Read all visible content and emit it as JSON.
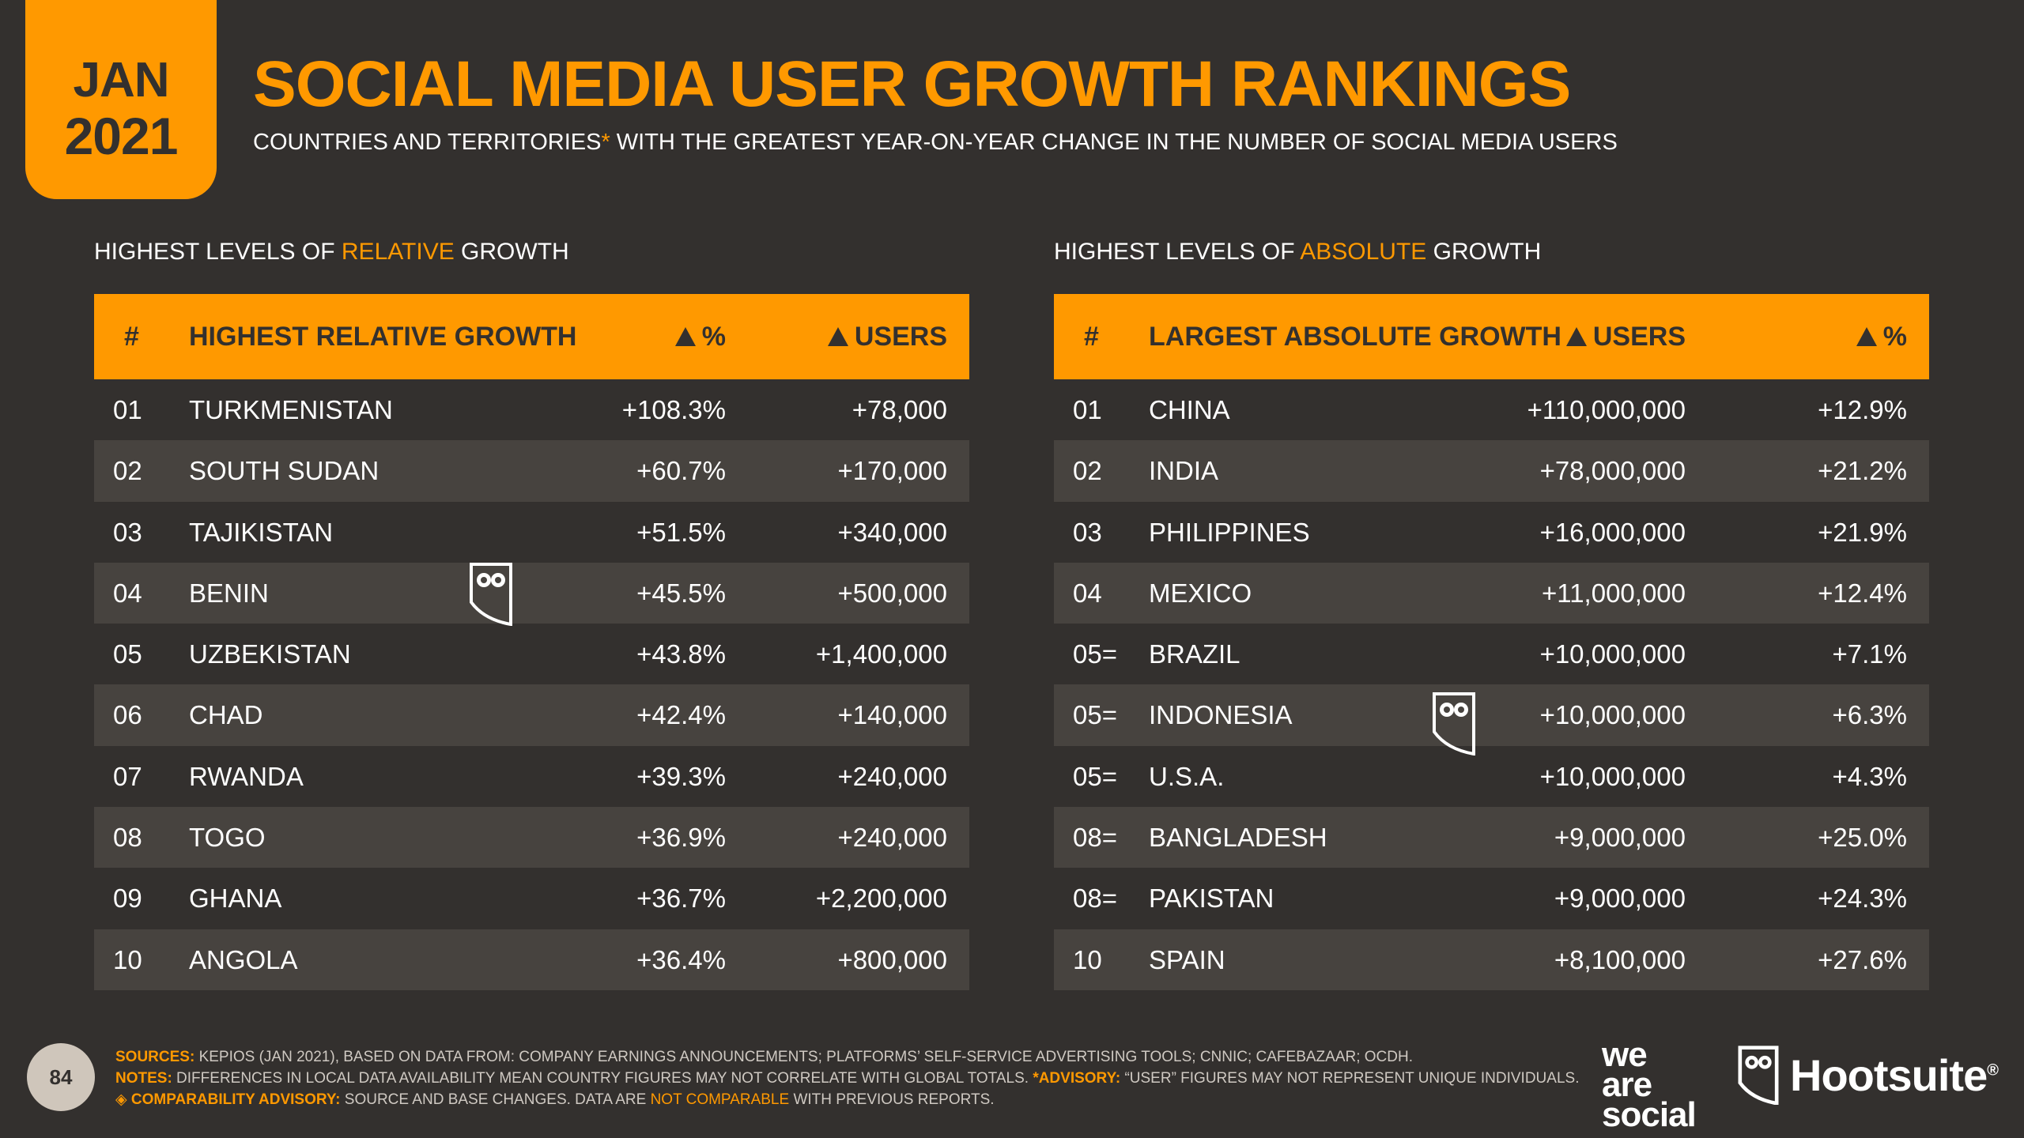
{
  "badge": {
    "month": "JAN",
    "year": "2021"
  },
  "title": "SOCIAL MEDIA USER GROWTH RANKINGS",
  "subtitle": {
    "before": "COUNTRIES AND TERRITORIES",
    "asterisk": "*",
    "after": " WITH THE GREATEST YEAR-ON-YEAR CHANGE IN THE NUMBER OF SOCIAL MEDIA USERS"
  },
  "relative": {
    "label_pre": "HIGHEST LEVELS OF ",
    "label_hl": "RELATIVE",
    "label_post": " GROWTH",
    "headers": {
      "rank": "#",
      "name": "HIGHEST RELATIVE GROWTH",
      "v1": "%",
      "v2": "USERS"
    },
    "rows": [
      {
        "rank": "01",
        "name": "TURKMENISTAN",
        "pct": "+108.3%",
        "users": "+78,000"
      },
      {
        "rank": "02",
        "name": "SOUTH SUDAN",
        "pct": "+60.7%",
        "users": "+170,000"
      },
      {
        "rank": "03",
        "name": "TAJIKISTAN",
        "pct": "+51.5%",
        "users": "+340,000"
      },
      {
        "rank": "04",
        "name": "BENIN",
        "pct": "+45.5%",
        "users": "+500,000"
      },
      {
        "rank": "05",
        "name": "UZBEKISTAN",
        "pct": "+43.8%",
        "users": "+1,400,000"
      },
      {
        "rank": "06",
        "name": "CHAD",
        "pct": "+42.4%",
        "users": "+140,000"
      },
      {
        "rank": "07",
        "name": "RWANDA",
        "pct": "+39.3%",
        "users": "+240,000"
      },
      {
        "rank": "08",
        "name": "TOGO",
        "pct": "+36.9%",
        "users": "+240,000"
      },
      {
        "rank": "09",
        "name": "GHANA",
        "pct": "+36.7%",
        "users": "+2,200,000"
      },
      {
        "rank": "10",
        "name": "ANGOLA",
        "pct": "+36.4%",
        "users": "+800,000"
      }
    ]
  },
  "absolute": {
    "label_pre": "HIGHEST LEVELS OF ",
    "label_hl": "ABSOLUTE",
    "label_post": " GROWTH",
    "headers": {
      "rank": "#",
      "name": "LARGEST ABSOLUTE GROWTH",
      "v1": "USERS",
      "v2": "%"
    },
    "rows": [
      {
        "rank": "01",
        "name": "CHINA",
        "users": "+110,000,000",
        "pct": "+12.9%"
      },
      {
        "rank": "02",
        "name": "INDIA",
        "users": "+78,000,000",
        "pct": "+21.2%"
      },
      {
        "rank": "03",
        "name": "PHILIPPINES",
        "users": "+16,000,000",
        "pct": "+21.9%"
      },
      {
        "rank": "04",
        "name": "MEXICO",
        "users": "+11,000,000",
        "pct": "+12.4%"
      },
      {
        "rank": "05=",
        "name": "BRAZIL",
        "users": "+10,000,000",
        "pct": "+7.1%"
      },
      {
        "rank": "05=",
        "name": "INDONESIA",
        "users": "+10,000,000",
        "pct": "+6.3%"
      },
      {
        "rank": "05=",
        "name": "U.S.A.",
        "users": "+10,000,000",
        "pct": "+4.3%"
      },
      {
        "rank": "08=",
        "name": "BANGLADESH",
        "users": "+9,000,000",
        "pct": "+25.0%"
      },
      {
        "rank": "08=",
        "name": "PAKISTAN",
        "users": "+9,000,000",
        "pct": "+24.3%"
      },
      {
        "rank": "10",
        "name": "SPAIN",
        "users": "+8,100,000",
        "pct": "+27.6%"
      }
    ]
  },
  "footer": {
    "sources_label": "SOURCES:",
    "sources_text": " KEPIOS (JAN 2021), BASED ON DATA FROM: COMPANY EARNINGS ANNOUNCEMENTS; PLATFORMS’ SELF-SERVICE ADVERTISING TOOLS; CNNIC; CAFEBAZAAR; OCDH.",
    "notes_label": "NOTES:",
    "notes_text": " DIFFERENCES IN LOCAL DATA AVAILABILITY MEAN COUNTRY FIGURES MAY NOT CORRELATE WITH GLOBAL TOTALS. ",
    "advisory_label": "*ADVISORY:",
    "advisory_text": " “USER” FIGURES MAY NOT REPRESENT UNIQUE INDIVIDUALS. ",
    "comparability_label": "COMPARABILITY ADVISORY:",
    "comparability_text": " SOURCE AND BASE CHANGES. DATA ARE ",
    "not_comparable": "NOT COMPARABLE",
    "comparability_end": " WITH PREVIOUS REPORTS.",
    "page_number": "84"
  },
  "logos": {
    "was_line1": "we",
    "was_line2": "are",
    "was_line3": "social",
    "hootsuite": "Hootsuite",
    "registered": "®"
  },
  "colors": {
    "accent": "#ff9900",
    "background": "#33302e",
    "row_alt": "#47433f"
  }
}
